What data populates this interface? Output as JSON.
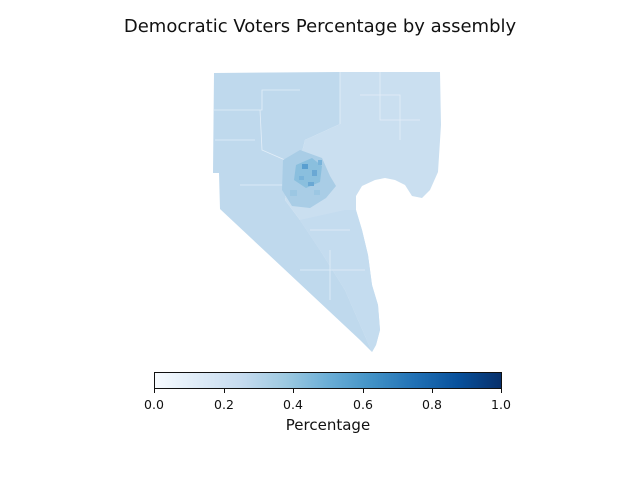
{
  "title": "Democratic Voters Percentage by assembly",
  "colorbar": {
    "label": "Percentage",
    "colormap": "Blues",
    "range": [
      0.0,
      1.0
    ],
    "ticks": [
      "0.0",
      "0.2",
      "0.4",
      "0.6",
      "0.8",
      "1.0"
    ]
  },
  "colors": {
    "region_west": "#bfd9ed",
    "region_east": "#cadff0",
    "urban_light": "#a9cde6",
    "urban_mid": "#8abfde",
    "urban_dark": "#5a9fd0",
    "boundary": "#e3eef8"
  }
}
